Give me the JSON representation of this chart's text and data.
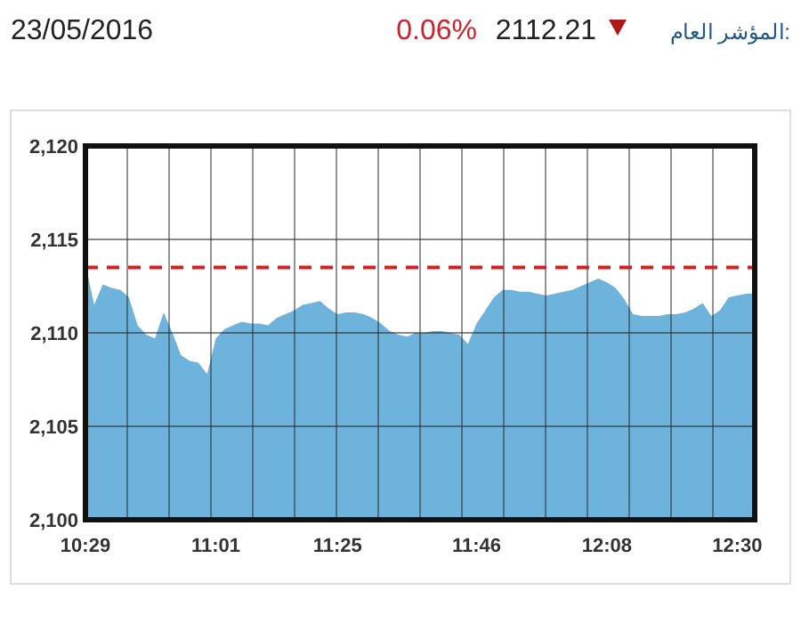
{
  "chart_data": {
    "type": "area",
    "title": "23/05/2016",
    "annotations": [
      "المؤشر العام:",
      "2112.21",
      "0.06%"
    ],
    "categories": [
      "10:29",
      null,
      null,
      null,
      null,
      null,
      null,
      null,
      null,
      null,
      null,
      null,
      null,
      null,
      null,
      "11:01",
      null,
      null,
      null,
      null,
      null,
      null,
      null,
      null,
      null,
      null,
      null,
      null,
      null,
      "11:25",
      null,
      null,
      null,
      null,
      null,
      null,
      null,
      null,
      null,
      null,
      null,
      null,
      null,
      null,
      null,
      "11:46",
      null,
      null,
      null,
      null,
      null,
      null,
      null,
      null,
      null,
      null,
      null,
      null,
      null,
      null,
      "12:08",
      null,
      null,
      null,
      null,
      null,
      null,
      null,
      null,
      null,
      null,
      null,
      null,
      null,
      null,
      "12:30",
      null,
      null
    ],
    "series": [
      {
        "color": "#6db3dc",
        "values": [
          2113.7,
          2111.5,
          2112.6,
          2112.4,
          2112.3,
          2111.9,
          2110.4,
          2109.9,
          2109.7,
          2111.1,
          2110.0,
          2108.8,
          2108.5,
          2108.4,
          2107.8,
          2109.7,
          2110.2,
          2110.4,
          2110.6,
          2110.5,
          2110.5,
          2110.4,
          2110.8,
          2111.0,
          2111.2,
          2111.5,
          2111.6,
          2111.7,
          2111.3,
          2111.0,
          2111.1,
          2111.1,
          2111.0,
          2110.8,
          2110.5,
          2110.1,
          2109.9,
          2109.8,
          2110.0,
          2110.0,
          2110.1,
          2110.1,
          2110.0,
          2109.9,
          2109.4,
          2110.5,
          2111.2,
          2111.9,
          2112.3,
          2112.3,
          2112.2,
          2112.2,
          2112.1,
          2112.0,
          2112.1,
          2112.2,
          2112.3,
          2112.5,
          2112.7,
          2112.9,
          2112.7,
          2112.4,
          2111.8,
          2111.0,
          2110.9,
          2110.9,
          2110.9,
          2111.0,
          2111.0,
          2111.1,
          2111.3,
          2111.6,
          2110.9,
          2111.2,
          2111.9,
          2112.0,
          2112.1,
          2112.1
        ]
      }
    ],
    "ylim": [
      2100,
      2120
    ],
    "yticks": [
      {
        "value": 2100,
        "label": "2,100"
      },
      {
        "value": 2105,
        "label": "2,105"
      },
      {
        "value": 2110,
        "label": "2,110"
      },
      {
        "value": 2115,
        "label": "2,115"
      },
      {
        "value": 2120,
        "label": "2,120"
      }
    ],
    "ref_lines": [
      {
        "axis": "y",
        "value": 2113.5,
        "color": "#d62020",
        "line_style": "dashed"
      }
    ],
    "grid": true
  }
}
